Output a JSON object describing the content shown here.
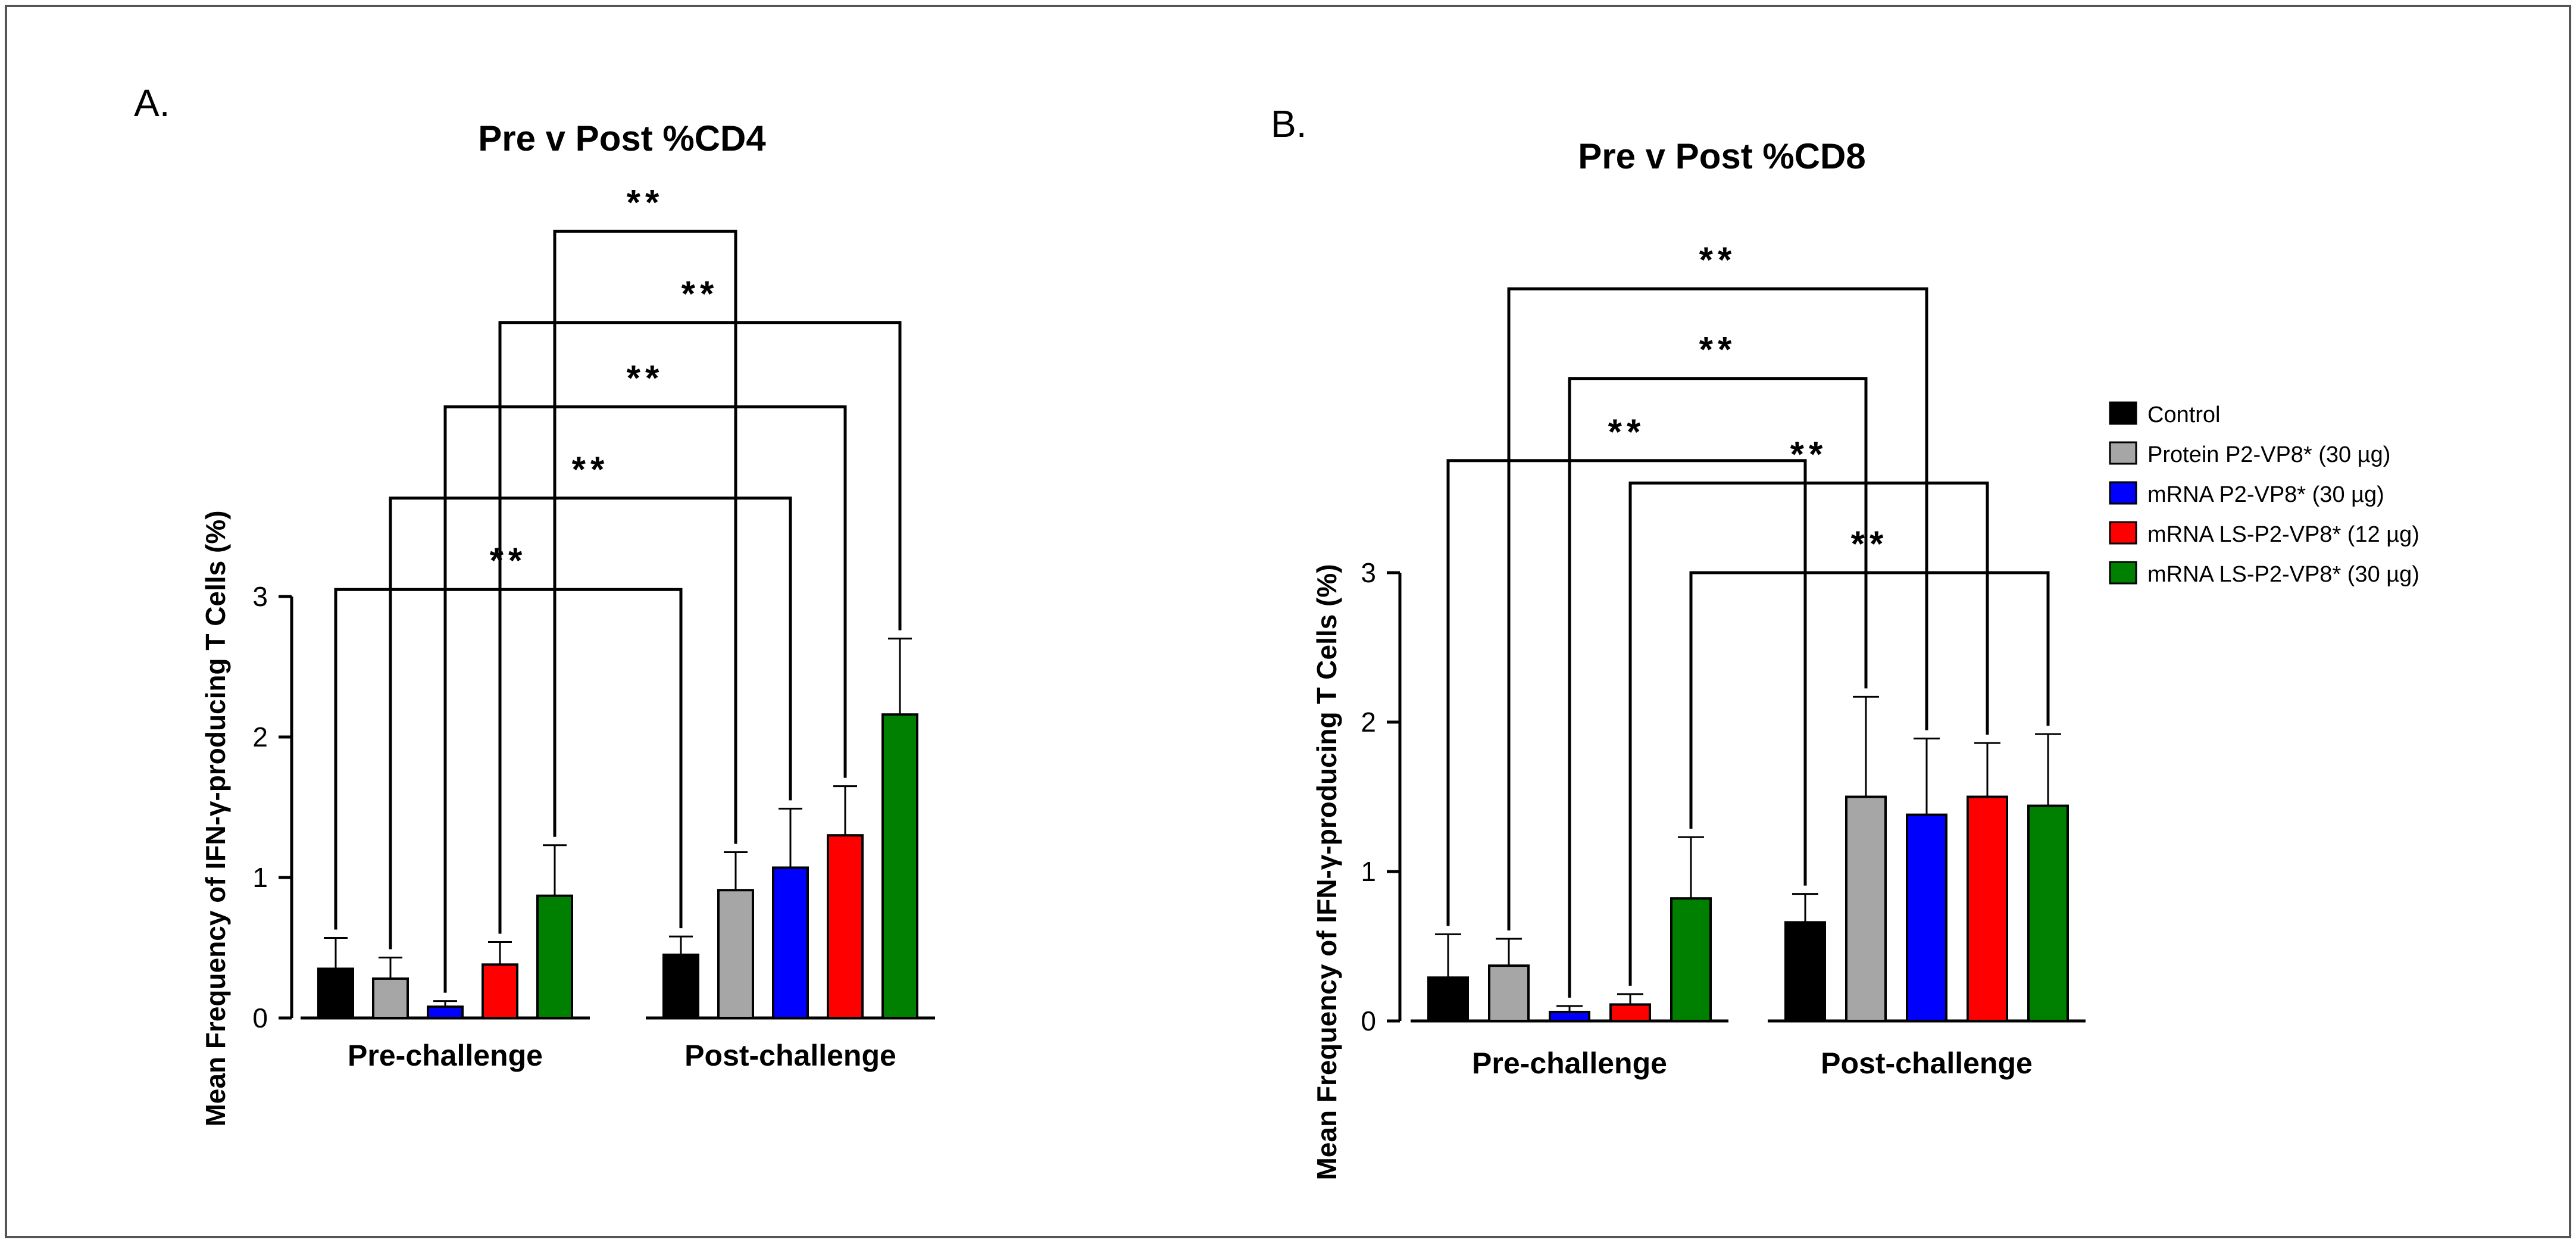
{
  "figure": {
    "panel_a_label": "A.",
    "panel_b_label": "B."
  },
  "legend": {
    "items": [
      {
        "label": "Control",
        "color": "#000000"
      },
      {
        "label": "Protein P2-VP8* (30 µg)",
        "color": "#a6a6a6"
      },
      {
        "label": "mRNA P2-VP8* (30 µg)",
        "color": "#0000ff"
      },
      {
        "label": "mRNA LS-P2-VP8* (12 µg)",
        "color": "#ff0000"
      },
      {
        "label": "mRNA LS-P2-VP8* (30 µg)",
        "color": "#008000"
      }
    ]
  },
  "chart_data": [
    {
      "type": "bar",
      "title": "Pre v Post %CD4",
      "xlabel": "",
      "ylabel": "Mean Frequency of IFN-γ-producing T Cells (%)",
      "ylim": [
        0,
        3
      ],
      "yticks": [
        "0",
        "1",
        "2",
        "3"
      ],
      "categories": [
        "Pre-challenge",
        "Post-challenge"
      ],
      "series": [
        {
          "name": "Control",
          "values": [
            0.35,
            0.45
          ],
          "errors": [
            0.22,
            0.13
          ]
        },
        {
          "name": "Protein P2-VP8* (30 µg)",
          "values": [
            0.28,
            0.91
          ],
          "errors": [
            0.15,
            0.27
          ]
        },
        {
          "name": "mRNA P2-VP8* (30 µg)",
          "values": [
            0.08,
            1.07
          ],
          "errors": [
            0.04,
            0.42
          ]
        },
        {
          "name": "mRNA LS-P2-VP8* (12 µg)",
          "values": [
            0.38,
            1.3
          ],
          "errors": [
            0.16,
            0.35
          ]
        },
        {
          "name": "mRNA LS-P2-VP8* (30 µg)",
          "values": [
            0.87,
            2.16
          ],
          "errors": [
            0.36,
            0.54
          ]
        }
      ],
      "significance": [
        {
          "label": "**",
          "from": [
            0,
            0
          ],
          "to": [
            1,
            0
          ],
          "y": 3.05
        },
        {
          "label": "**",
          "from": [
            0,
            1
          ],
          "to": [
            1,
            2
          ],
          "y": 3.7
        },
        {
          "label": "**",
          "from": [
            0,
            2
          ],
          "to": [
            1,
            3
          ],
          "y": 4.35
        },
        {
          "label": "**",
          "from": [
            0,
            3
          ],
          "to": [
            1,
            4
          ],
          "y": 4.95
        },
        {
          "label": "**",
          "from": [
            0,
            4
          ],
          "to": [
            1,
            1
          ],
          "y": 5.6
        }
      ]
    },
    {
      "type": "bar",
      "title": "Pre v Post %CD8",
      "xlabel": "",
      "ylabel": "Mean Frequency of IFN-γ-producing T Cells (%)",
      "ylim": [
        0,
        3
      ],
      "yticks": [
        "0",
        "1",
        "2",
        "3"
      ],
      "categories": [
        "Pre-challenge",
        "Post-challenge"
      ],
      "series": [
        {
          "name": "Control",
          "values": [
            0.29,
            0.66
          ],
          "errors": [
            0.29,
            0.19
          ]
        },
        {
          "name": "Protein P2-VP8* (30 µg)",
          "values": [
            0.37,
            1.5
          ],
          "errors": [
            0.18,
            0.67
          ]
        },
        {
          "name": "mRNA P2-VP8* (30 µg)",
          "values": [
            0.06,
            1.38
          ],
          "errors": [
            0.04,
            0.51
          ]
        },
        {
          "name": "mRNA LS-P2-VP8* (12 µg)",
          "values": [
            0.11,
            1.5
          ],
          "errors": [
            0.07,
            0.36
          ]
        },
        {
          "name": "mRNA LS-P2-VP8* (30 µg)",
          "values": [
            0.82,
            1.44
          ],
          "errors": [
            0.41,
            0.48
          ]
        }
      ],
      "significance": [
        {
          "label": "**",
          "from": [
            0,
            4
          ],
          "to": [
            1,
            4
          ],
          "y": 3.0
        },
        {
          "label": "**",
          "from": [
            0,
            3
          ],
          "to": [
            1,
            3
          ],
          "y": 3.6
        },
        {
          "label": "**",
          "from": [
            0,
            0
          ],
          "to": [
            1,
            0
          ],
          "y": 3.75
        },
        {
          "label": "**",
          "from": [
            0,
            2
          ],
          "to": [
            1,
            1
          ],
          "y": 4.3
        },
        {
          "label": "**",
          "from": [
            0,
            1
          ],
          "to": [
            1,
            2
          ],
          "y": 4.9
        }
      ]
    }
  ]
}
